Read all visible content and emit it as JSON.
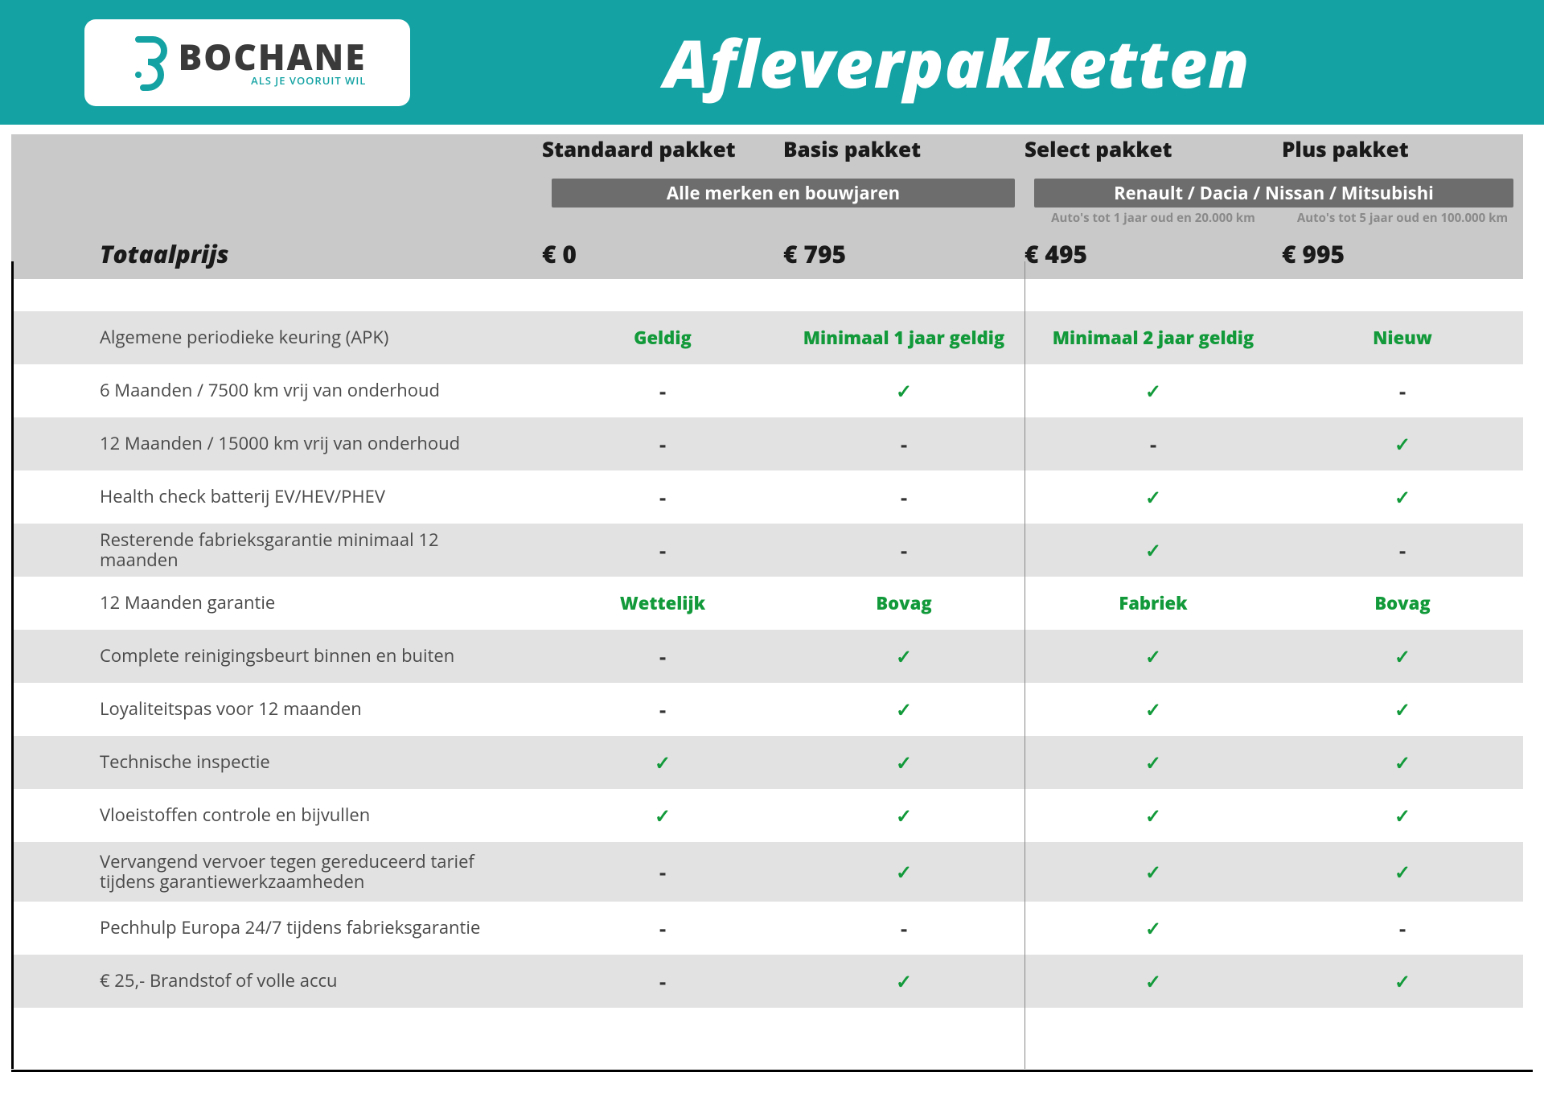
{
  "brand": {
    "name": "BOCHANE",
    "tagline": "ALS JE VOORUIT WIL"
  },
  "page_title": "Afleverpakketten",
  "columns": [
    {
      "key": "standaard",
      "name": "Standaard pakket",
      "price": "€ 0",
      "note": ""
    },
    {
      "key": "basis",
      "name": "Basis pakket",
      "price": "€ 795",
      "note": ""
    },
    {
      "key": "select",
      "name": "Select pakket",
      "price": "€ 495",
      "note": "Auto's tot 1 jaar oud en 20.000 km"
    },
    {
      "key": "plus",
      "name": "Plus pakket",
      "price": "€ 995",
      "note": "Auto's tot 5 jaar oud en 100.000 km"
    }
  ],
  "sub_banner_left": "Alle merken en bouwjaren",
  "sub_banner_right": "Renault / Dacia / Nissan / Mitsubishi",
  "total_label": "Totaalprijs",
  "features": [
    {
      "label": "Algemene periodieke keuring (APK)",
      "alt": true,
      "cells": [
        {
          "t": "text",
          "v": "Geldig"
        },
        {
          "t": "text",
          "v": "Minimaal 1 jaar geldig"
        },
        {
          "t": "text",
          "v": "Minimaal 2 jaar geldig"
        },
        {
          "t": "text",
          "v": "Nieuw"
        }
      ]
    },
    {
      "label": "6 Maanden / 7500 km vrij van onderhoud",
      "alt": false,
      "cells": [
        {
          "t": "dash"
        },
        {
          "t": "check"
        },
        {
          "t": "check"
        },
        {
          "t": "dash"
        }
      ]
    },
    {
      "label": "12 Maanden / 15000 km vrij van onderhoud",
      "alt": true,
      "cells": [
        {
          "t": "dash"
        },
        {
          "t": "dash"
        },
        {
          "t": "dash"
        },
        {
          "t": "check"
        }
      ]
    },
    {
      "label": "Health check batterij EV/HEV/PHEV",
      "alt": false,
      "cells": [
        {
          "t": "dash"
        },
        {
          "t": "dash"
        },
        {
          "t": "check"
        },
        {
          "t": "check"
        }
      ]
    },
    {
      "label": "Resterende fabrieksgarantie minimaal 12 maanden",
      "alt": true,
      "cells": [
        {
          "t": "dash"
        },
        {
          "t": "dash"
        },
        {
          "t": "check"
        },
        {
          "t": "dash"
        }
      ]
    },
    {
      "label": "12 Maanden  garantie",
      "alt": false,
      "cells": [
        {
          "t": "text",
          "v": "Wettelijk"
        },
        {
          "t": "text",
          "v": "Bovag"
        },
        {
          "t": "text",
          "v": "Fabriek"
        },
        {
          "t": "text",
          "v": "Bovag"
        }
      ]
    },
    {
      "label": "Complete reinigingsbeurt binnen en buiten",
      "alt": true,
      "cells": [
        {
          "t": "dash"
        },
        {
          "t": "check"
        },
        {
          "t": "check"
        },
        {
          "t": "check"
        }
      ]
    },
    {
      "label": "Loyaliteitspas voor 12 maanden",
      "alt": false,
      "cells": [
        {
          "t": "dash"
        },
        {
          "t": "check"
        },
        {
          "t": "check"
        },
        {
          "t": "check"
        }
      ]
    },
    {
      "label": "Technische inspectie",
      "alt": true,
      "cells": [
        {
          "t": "check"
        },
        {
          "t": "check"
        },
        {
          "t": "check"
        },
        {
          "t": "check"
        }
      ]
    },
    {
      "label": "Vloeistoffen controle en bijvullen",
      "alt": false,
      "cells": [
        {
          "t": "check"
        },
        {
          "t": "check"
        },
        {
          "t": "check"
        },
        {
          "t": "check"
        }
      ]
    },
    {
      "label": "Vervangend vervoer tegen gereduceerd tarief tijdens garantiewerkzaamheden",
      "alt": true,
      "tall": true,
      "cells": [
        {
          "t": "dash"
        },
        {
          "t": "check"
        },
        {
          "t": "check"
        },
        {
          "t": "check"
        }
      ]
    },
    {
      "label": "Pechhulp Europa 24/7 tijdens fabrieksgarantie",
      "alt": false,
      "cells": [
        {
          "t": "dash"
        },
        {
          "t": "dash"
        },
        {
          "t": "check"
        },
        {
          "t": "dash"
        }
      ]
    },
    {
      "label": "€ 25,- Brandstof of  volle accu",
      "alt": true,
      "cells": [
        {
          "t": "dash"
        },
        {
          "t": "check"
        },
        {
          "t": "check"
        },
        {
          "t": "check"
        }
      ]
    }
  ],
  "colors": {
    "teal": "#14a2a3",
    "green": "#129a3a",
    "headerGrey": "#c9c9c9",
    "bannerGrey": "#6d6d6d",
    "rowAlt": "#e2e2e2"
  }
}
